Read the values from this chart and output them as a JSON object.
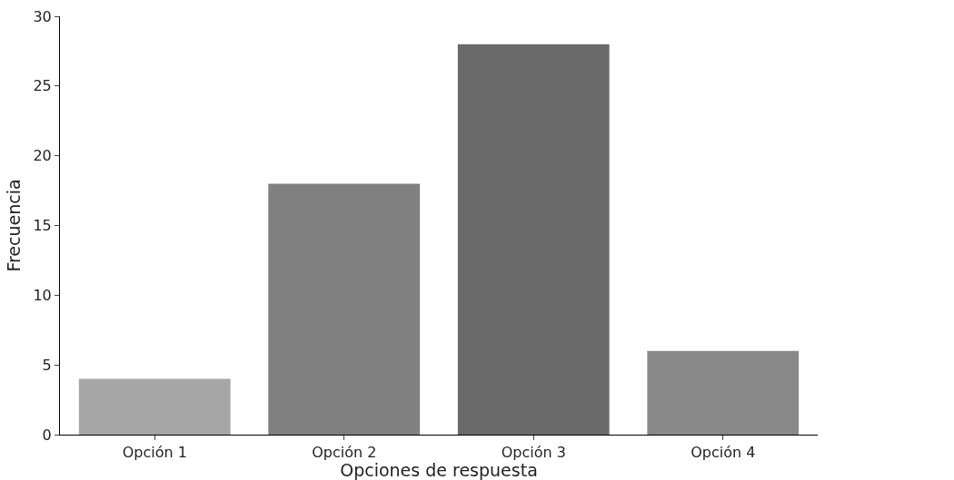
{
  "chart_data": {
    "type": "bar",
    "categories": [
      "Opción 1",
      "Opción 2",
      "Opción 3",
      "Opción 4"
    ],
    "values": [
      4,
      18,
      28,
      6
    ],
    "colors": [
      "#a6a6a6",
      "#808080",
      "#696969",
      "#898989"
    ],
    "xlabel": "Opciones de respuesta",
    "ylabel": "Frecuencia",
    "ylim": [
      0,
      30
    ],
    "yticks": [
      0,
      5,
      10,
      15,
      20,
      25,
      30
    ],
    "grid": false
  }
}
